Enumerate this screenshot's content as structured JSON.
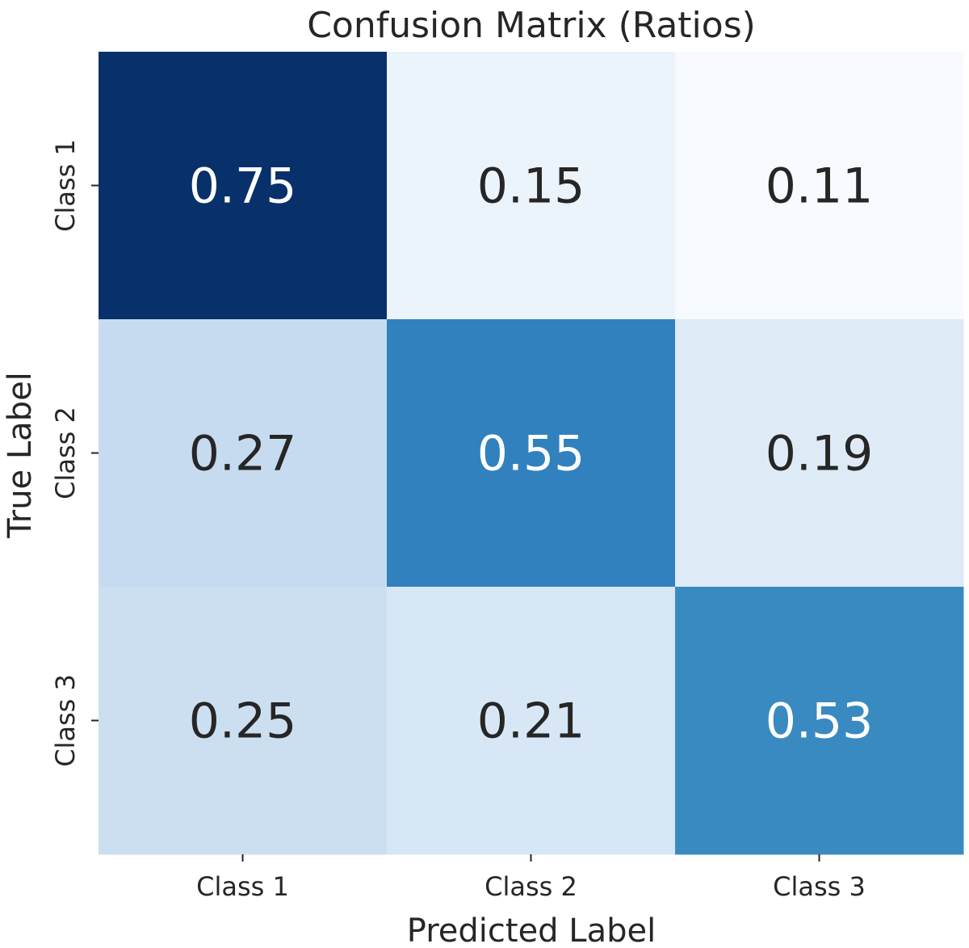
{
  "chart_data": {
    "type": "heatmap",
    "title": "Confusion Matrix (Ratios)",
    "xlabel": "Predicted Label",
    "ylabel": "True Label",
    "x_categories": [
      "Class 1",
      "Class 2",
      "Class 3"
    ],
    "y_categories": [
      "Class 1",
      "Class 2",
      "Class 3"
    ],
    "values": [
      [
        0.75,
        0.15,
        0.11
      ],
      [
        0.27,
        0.55,
        0.19
      ],
      [
        0.25,
        0.21,
        0.53
      ]
    ],
    "value_labels": [
      [
        "0.75",
        "0.15",
        "0.11"
      ],
      [
        "0.27",
        "0.55",
        "0.19"
      ],
      [
        "0.25",
        "0.21",
        "0.53"
      ]
    ],
    "colormap": "Blues",
    "colorbar": false,
    "grid": false,
    "colors": {
      "low": "#f7fbff",
      "high": "#08306b",
      "dark_text": "#262626",
      "light_text": "#ffffff"
    }
  }
}
